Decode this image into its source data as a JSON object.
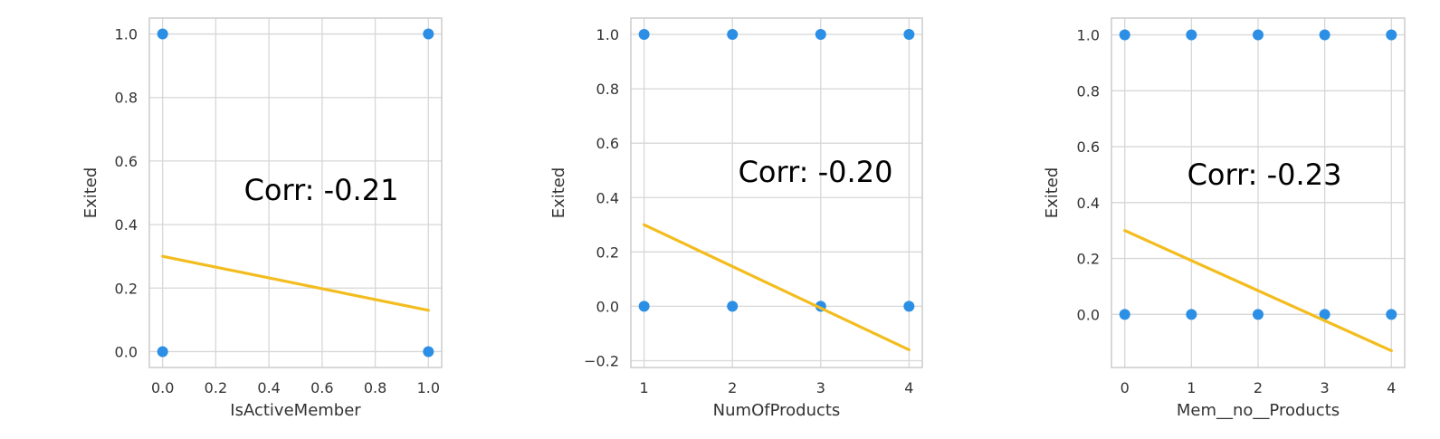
{
  "colors": {
    "point": "#2b8fe5",
    "line": "#f3bd1f",
    "grid": "#d7d7d7",
    "frame": "#cccccc"
  },
  "chart_data": [
    {
      "type": "scatter",
      "xlabel": "IsActiveMember",
      "ylabel": "Exited",
      "annotation": "Corr: -0.21",
      "xlim": [
        -0.05,
        1.05
      ],
      "ylim": [
        -0.05,
        1.05
      ],
      "xticks": [
        0.0,
        0.2,
        0.4,
        0.6,
        0.8,
        1.0
      ],
      "xtick_labels": [
        "0.0",
        "0.2",
        "0.4",
        "0.6",
        "0.8",
        "1.0"
      ],
      "yticks": [
        0.0,
        0.2,
        0.4,
        0.6,
        0.8,
        1.0
      ],
      "ytick_labels": [
        "0.0",
        "0.2",
        "0.4",
        "0.6",
        "0.8",
        "1.0"
      ],
      "points": [
        {
          "x": 0,
          "y": 0
        },
        {
          "x": 0,
          "y": 1
        },
        {
          "x": 1,
          "y": 0
        },
        {
          "x": 1,
          "y": 1
        }
      ],
      "regression": {
        "x": [
          0,
          1
        ],
        "y": [
          0.3,
          0.13
        ]
      }
    },
    {
      "type": "scatter",
      "xlabel": "NumOfProducts",
      "ylabel": "Exited",
      "annotation": "Corr: -0.20",
      "xlim": [
        0.85,
        4.15
      ],
      "ylim": [
        -0.225,
        1.06
      ],
      "xticks": [
        1,
        2,
        3,
        4
      ],
      "xtick_labels": [
        "1",
        "2",
        "3",
        "4"
      ],
      "yticks": [
        -0.2,
        0.0,
        0.2,
        0.4,
        0.6,
        0.8,
        1.0
      ],
      "ytick_labels": [
        "−0.2",
        "0.0",
        "0.2",
        "0.4",
        "0.6",
        "0.8",
        "1.0"
      ],
      "points": [
        {
          "x": 1,
          "y": 0
        },
        {
          "x": 1,
          "y": 1
        },
        {
          "x": 2,
          "y": 0
        },
        {
          "x": 2,
          "y": 1
        },
        {
          "x": 3,
          "y": 0
        },
        {
          "x": 3,
          "y": 1
        },
        {
          "x": 4,
          "y": 0
        },
        {
          "x": 4,
          "y": 1
        }
      ],
      "regression": {
        "x": [
          1,
          4
        ],
        "y": [
          0.3,
          -0.16
        ]
      }
    },
    {
      "type": "scatter",
      "xlabel": "Mem__no__Products",
      "ylabel": "Exited",
      "annotation": "Corr: -0.23",
      "xlim": [
        -0.2,
        4.2
      ],
      "ylim": [
        -0.19,
        1.06
      ],
      "xticks": [
        0,
        1,
        2,
        3,
        4
      ],
      "xtick_labels": [
        "0",
        "1",
        "2",
        "3",
        "4"
      ],
      "yticks": [
        0.0,
        0.2,
        0.4,
        0.6,
        0.8,
        1.0
      ],
      "ytick_labels": [
        "0.0",
        "0.2",
        "0.4",
        "0.6",
        "0.8",
        "1.0"
      ],
      "points": [
        {
          "x": 0,
          "y": 0
        },
        {
          "x": 0,
          "y": 1
        },
        {
          "x": 1,
          "y": 0
        },
        {
          "x": 1,
          "y": 1
        },
        {
          "x": 2,
          "y": 0
        },
        {
          "x": 2,
          "y": 1
        },
        {
          "x": 3,
          "y": 0
        },
        {
          "x": 3,
          "y": 1
        },
        {
          "x": 4,
          "y": 0
        },
        {
          "x": 4,
          "y": 1
        }
      ],
      "regression": {
        "x": [
          0,
          4
        ],
        "y": [
          0.3,
          -0.13
        ]
      }
    }
  ]
}
